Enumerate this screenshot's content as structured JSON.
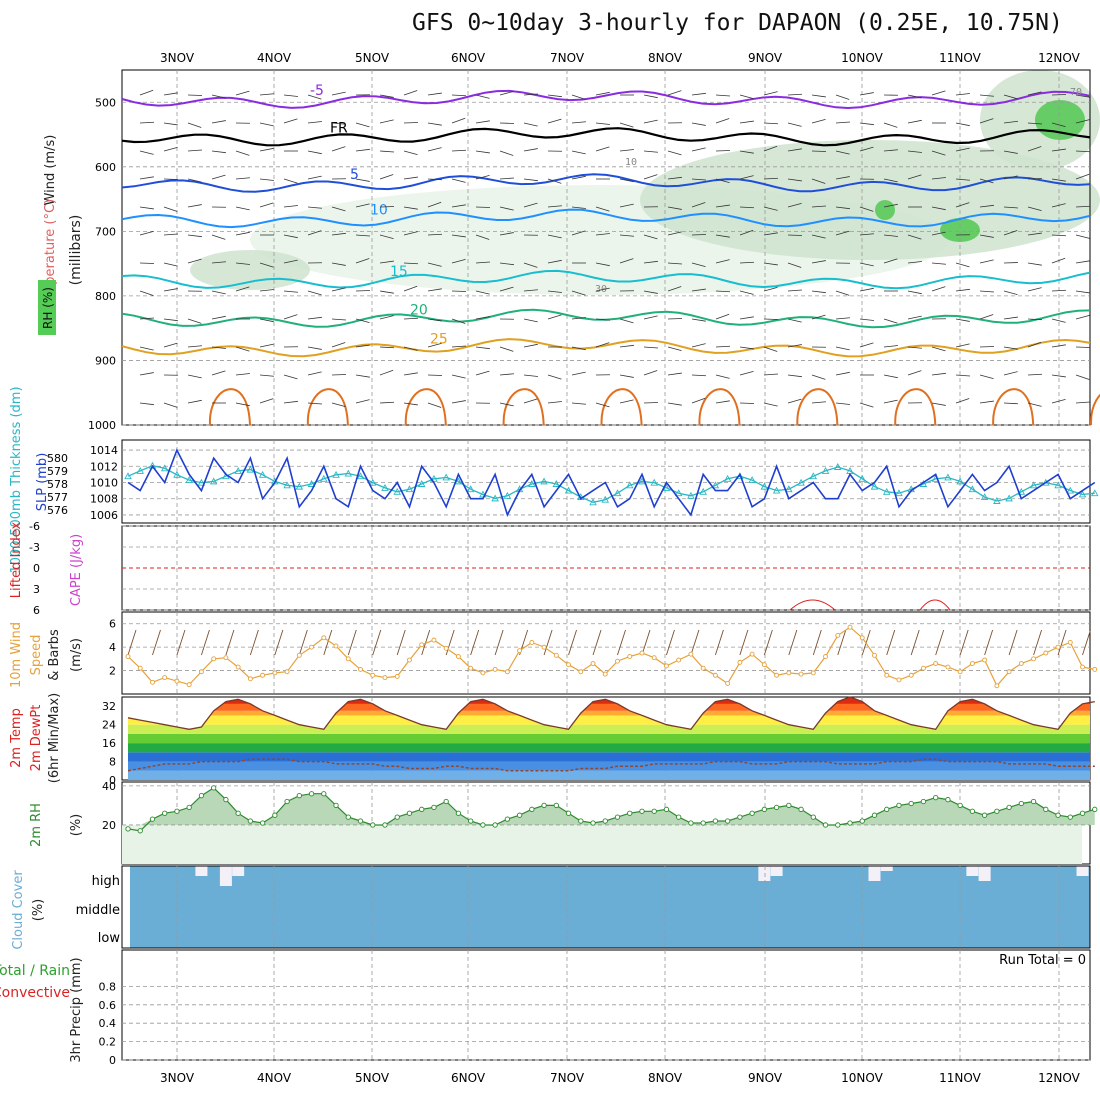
{
  "title": "GFS 0~10day 3-hourly for DAPAON (0.25E, 10.75N)",
  "dates": [
    "3NOV",
    "4NOV",
    "5NOV",
    "6NOV",
    "7NOV",
    "8NOV",
    "9NOV",
    "10NOV",
    "11NOV",
    "12NOV"
  ],
  "colors": {
    "grid": "#999999",
    "rh": "#2e8b2e",
    "cape": "#cc44cc",
    "li": "#dd2222",
    "wind": "#e6a23c",
    "slp": "#1f3fcf",
    "thick": "#2ab7c4",
    "cloud": "#6aaed6",
    "precip_total": "#2ca02c",
    "precip_conv": "#dd2222"
  },
  "chart_data": [
    {
      "type": "heatmap",
      "panel": "upper-air",
      "ylabels": {
        "wind": "Wind (m/s)",
        "temp": "Temperature (°C)",
        "rh": "RH (%)",
        "unit": "(millibars)"
      },
      "yticks": [
        "500",
        "600",
        "700",
        "800",
        "900",
        "1000"
      ],
      "ylim": [
        450,
        1000
      ],
      "isotherms": [
        {
          "label": "-5",
          "level": 495
        },
        {
          "label": "FR",
          "level": 553
        },
        {
          "label": "5",
          "level": 625
        },
        {
          "label": "10",
          "level": 680
        },
        {
          "label": "15",
          "level": 775
        },
        {
          "label": "20",
          "level": 835
        },
        {
          "label": "25",
          "level": 880
        }
      ],
      "rh_contours": [
        "10",
        "30",
        "70"
      ]
    },
    {
      "type": "line",
      "panel": "slp-thickness",
      "ylabels": {
        "thick": "1000-500mb Thickness (dm)",
        "slp": "SLP (mb)"
      },
      "yticks_left": [
        "580",
        "579",
        "578",
        "577",
        "576"
      ],
      "yticks_right": [
        "1014",
        "1012",
        "1010",
        "1008",
        "1006"
      ],
      "series": [
        {
          "name": "SLP",
          "axis": "right",
          "values": [
            1010,
            1009,
            1012,
            1010,
            1014,
            1011,
            1009,
            1013,
            1011,
            1010,
            1013,
            1008,
            1010,
            1013,
            1007,
            1009,
            1012,
            1008,
            1007,
            1012,
            1009,
            1008,
            1010,
            1007,
            1012,
            1010,
            1007,
            1011,
            1008,
            1008,
            1011,
            1006,
            1009,
            1011,
            1007,
            1009,
            1011,
            1008,
            1009,
            1010,
            1007,
            1008,
            1011,
            1007,
            1010,
            1008,
            1006,
            1011,
            1009,
            1009,
            1011,
            1007,
            1008,
            1012,
            1008,
            1009,
            1010,
            1008,
            1008,
            1011,
            1009,
            1010,
            1012,
            1007,
            1009,
            1010,
            1011,
            1007,
            1009,
            1011,
            1009,
            1010,
            1012,
            1008,
            1009,
            1010,
            1011,
            1008,
            1009,
            1010
          ]
        },
        {
          "name": "Thickness",
          "axis": "left",
          "values": [
            578.6,
            579.0,
            579.4,
            579.2,
            578.7,
            578.3,
            578.1,
            578.2,
            578.6,
            579.0,
            579.1,
            578.7,
            578.2,
            577.9,
            577.8,
            578.0,
            578.4,
            578.7,
            578.8,
            578.6,
            578.1,
            577.7,
            577.4,
            577.6,
            578.0,
            578.4,
            578.5,
            578.2,
            577.6,
            577.2,
            576.9,
            577.1,
            577.6,
            578.0,
            578.2,
            578.0,
            577.5,
            577.0,
            576.6,
            576.8,
            577.3,
            577.9,
            578.2,
            578.1,
            577.7,
            577.3,
            577.1,
            577.4,
            577.9,
            578.4,
            578.6,
            578.3,
            577.8,
            577.5,
            577.6,
            578.1,
            578.6,
            579.0,
            579.3,
            579.0,
            578.4,
            577.8,
            577.4,
            577.3,
            577.6,
            578.0,
            578.4,
            578.5,
            578.2,
            577.6,
            577.0,
            576.7,
            576.9,
            577.4,
            577.9,
            578.1,
            577.9,
            577.5,
            577.2,
            577.3
          ]
        }
      ]
    },
    {
      "type": "line",
      "panel": "lifted-index",
      "ylabels": {
        "li": "Lifted Index",
        "cape": "CAPE (J/kg)"
      },
      "yticks": [
        "-6",
        "-3",
        "0",
        "3",
        "6"
      ],
      "ylim": [
        -6,
        6
      ],
      "series": [
        {
          "name": "Lifted Index",
          "values": []
        }
      ]
    },
    {
      "type": "line",
      "panel": "10m-wind",
      "ylabels": {
        "a": "10m Wind",
        "b": "Speed",
        "c": "& Barbs",
        "unit": "(m/s)"
      },
      "yticks": [
        "6",
        "4",
        "2"
      ],
      "ylim": [
        0,
        7
      ],
      "series": [
        {
          "name": "10m Wind Speed",
          "values": [
            3.2,
            2.2,
            1.0,
            1.4,
            1.1,
            0.8,
            1.9,
            3.0,
            3.1,
            2.3,
            1.3,
            1.6,
            1.8,
            1.9,
            3.3,
            4.0,
            4.8,
            4.1,
            3.0,
            2.1,
            1.6,
            1.4,
            1.5,
            2.9,
            4.2,
            4.6,
            3.9,
            3.2,
            2.2,
            1.8,
            2.1,
            1.9,
            3.7,
            4.4,
            4.0,
            3.3,
            2.5,
            1.9,
            2.6,
            1.7,
            2.8,
            3.2,
            3.5,
            3.1,
            2.4,
            2.9,
            3.4,
            2.2,
            1.6,
            0.9,
            2.7,
            3.4,
            2.5,
            1.6,
            1.8,
            1.7,
            1.8,
            3.2,
            5.0,
            5.7,
            4.8,
            3.3,
            1.6,
            1.2,
            1.6,
            2.2,
            2.6,
            2.3,
            1.9,
            2.6,
            2.9,
            0.7,
            1.9,
            2.6,
            3.0,
            3.5,
            4.0,
            4.4,
            2.3,
            2.1
          ]
        }
      ]
    },
    {
      "type": "area",
      "panel": "2m-temp",
      "ylabels": {
        "a": "2m Temp",
        "b": "2m DewPt",
        "c": "(6hr Min/Max)"
      },
      "yticks": [
        "32",
        "24",
        "16",
        "8",
        "0"
      ],
      "ylim": [
        0,
        36
      ],
      "series": [
        {
          "name": "2m Temp",
          "values": [
            27,
            26,
            25,
            24,
            23,
            22,
            23,
            30,
            34,
            35,
            33,
            30,
            28,
            26,
            24,
            23,
            22,
            29,
            34,
            35,
            33,
            30,
            28,
            26,
            24,
            23,
            22,
            29,
            34,
            35,
            33,
            30,
            28,
            26,
            24,
            23,
            22,
            29,
            34,
            35,
            33,
            30,
            28,
            26,
            24,
            23,
            22,
            29,
            34,
            35,
            33,
            30,
            28,
            26,
            24,
            23,
            22,
            29,
            34,
            36,
            34,
            30,
            28,
            26,
            24,
            23,
            22,
            30,
            34,
            35,
            33,
            30,
            28,
            26,
            24,
            23,
            22,
            29,
            33,
            34
          ]
        },
        {
          "name": "2m DewPt",
          "values": [
            4,
            5,
            6,
            7,
            7,
            7,
            8,
            8,
            8,
            8,
            9,
            9,
            9,
            9,
            8,
            8,
            8,
            7,
            7,
            7,
            7,
            6,
            6,
            5,
            5,
            5,
            6,
            6,
            5,
            5,
            5,
            4,
            4,
            4,
            4,
            4,
            4,
            5,
            5,
            5,
            6,
            6,
            6,
            7,
            7,
            7,
            7,
            7,
            8,
            8,
            8,
            7,
            7,
            7,
            8,
            8,
            8,
            8,
            7,
            7,
            7,
            7,
            8,
            8,
            8,
            9,
            9,
            8,
            8,
            8,
            8,
            8,
            7,
            7,
            7,
            7,
            6,
            6,
            6,
            6
          ]
        }
      ]
    },
    {
      "type": "area",
      "panel": "2m-rh",
      "ylabels": {
        "a": "2m RH",
        "unit": "(%)"
      },
      "yticks": [
        "40",
        "20"
      ],
      "ylim": [
        0,
        42
      ],
      "series": [
        {
          "name": "2m RH",
          "values": [
            18,
            17,
            23,
            26,
            27,
            29,
            35,
            39,
            33,
            26,
            22,
            21,
            25,
            32,
            35,
            36,
            36,
            30,
            24,
            22,
            20,
            20,
            24,
            26,
            28,
            29,
            32,
            26,
            22,
            20,
            20,
            23,
            25,
            28,
            30,
            30,
            26,
            22,
            21,
            22,
            24,
            26,
            27,
            27,
            28,
            24,
            21,
            21,
            22,
            22,
            24,
            26,
            28,
            29,
            30,
            28,
            24,
            20,
            20,
            21,
            22,
            25,
            28,
            30,
            31,
            32,
            34,
            33,
            30,
            27,
            25,
            27,
            29,
            31,
            32,
            28,
            25,
            24,
            26,
            28
          ]
        }
      ]
    },
    {
      "type": "area",
      "panel": "cloud-cover",
      "ylabels": {
        "a": "Cloud Cover",
        "unit": "(%)"
      },
      "yticks": [
        "high",
        "middle",
        "low"
      ],
      "series": [
        {
          "name": "High Cloud",
          "values": [
            0,
            0,
            0,
            0,
            0,
            0,
            40,
            0,
            80,
            40,
            0,
            0,
            0,
            0,
            0,
            0,
            0,
            0,
            0,
            0,
            0,
            0,
            0,
            0,
            0,
            0,
            0,
            0,
            0,
            0,
            0,
            0,
            0,
            0,
            0,
            0,
            0,
            0,
            0,
            0,
            0,
            0,
            0,
            0,
            0,
            0,
            0,
            0,
            0,
            0,
            0,
            0,
            60,
            40,
            0,
            0,
            0,
            0,
            0,
            0,
            0,
            60,
            20,
            0,
            0,
            0,
            0,
            0,
            0,
            40,
            60,
            0,
            0,
            0,
            0,
            0,
            0,
            0,
            40,
            0
          ]
        }
      ]
    },
    {
      "type": "bar",
      "panel": "precip",
      "ylabels": {
        "a": "Total / Rain",
        "b": "Convective",
        "c": "3hr Precip (mm)"
      },
      "yticks": [
        "0.8",
        "0.6",
        "0.4",
        "0.2",
        "0"
      ],
      "ylim": [
        0,
        1
      ],
      "run_total": "Run Total = 0",
      "series": [
        {
          "name": "Total / Rain",
          "values": []
        },
        {
          "name": "Convective",
          "values": []
        }
      ]
    }
  ]
}
